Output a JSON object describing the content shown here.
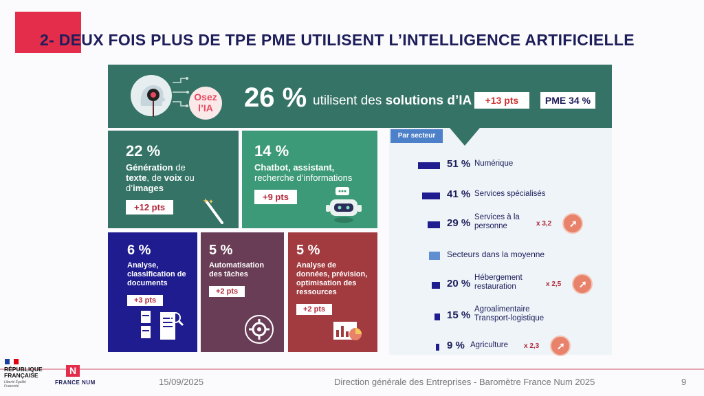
{
  "title": "2- DEUX FOIS PLUS DE TPE PME UTILISENT L’INTELLIGENCE ARTIFICIELLE",
  "banner": {
    "logo_line1": "Osez",
    "logo_line2": "l’IA",
    "pct": "26 %",
    "text_pre": "utilisent des ",
    "text_bold": "solutions d’IA",
    "delta": "+13 pts",
    "pme": "PME 34 %"
  },
  "tiles": [
    {
      "pct": "22 %",
      "desc_html_parts": [
        "Génération",
        " de ",
        "texte",
        ", de ",
        "voix",
        " ou d’",
        "images"
      ],
      "delta": "+12 pts",
      "icon": "magic-wand-icon"
    },
    {
      "pct": "14 %",
      "desc1": "Chatbot, assistant,",
      "desc2": "recherche d’informations",
      "delta": "+9 pts",
      "icon": "robot-icon"
    },
    {
      "pct": "6 %",
      "desc": "Analyse, classification de documents",
      "delta": "+3 pts",
      "icon": "documents-icon"
    },
    {
      "pct": "5 %",
      "desc": "Automatisation des tâches",
      "delta": "+2 pts",
      "icon": "gear-icon"
    },
    {
      "pct": "5 %",
      "desc": "Analyse de données, prévision, optimisation des ressources",
      "delta": "+2 pts",
      "icon": "analytics-icon"
    }
  ],
  "sectors": {
    "tag": "Par secteur",
    "rows": [
      {
        "pct": "51 %",
        "label": "Numérique",
        "value": 51
      },
      {
        "pct": "41 %",
        "label": "Services spécialisés",
        "value": 41
      },
      {
        "pct": "29 %",
        "label": "Services à la personne",
        "value": 29,
        "mult": "x 3,2"
      },
      {
        "pct": "",
        "label": "Secteurs dans la moyenne",
        "value": 0
      },
      {
        "pct": "20 %",
        "label": "Hébergement restauration",
        "value": 20,
        "mult": "x 2,5"
      },
      {
        "pct": "15 %",
        "label": "Agroalimentaire Transport-logistique",
        "value": 15
      },
      {
        "pct": "9 %",
        "label": "Agriculture",
        "value": 9,
        "mult": "x 2,3"
      }
    ]
  },
  "footer": {
    "rf_line1": "RÉPUBLIQUE",
    "rf_line2": "FRANÇAISE",
    "rf_motto": "Liberté Égalité Fraternité",
    "fn_logo": "N",
    "fn_text": "FRANCE NUM",
    "date": "15/09/2025",
    "source": "Direction générale des Entreprises - Baromètre France Num 2025",
    "page": "9"
  },
  "colors": {
    "accent": "#e32d4b",
    "green_dark": "#347366",
    "navy": "#1f1c8f"
  }
}
